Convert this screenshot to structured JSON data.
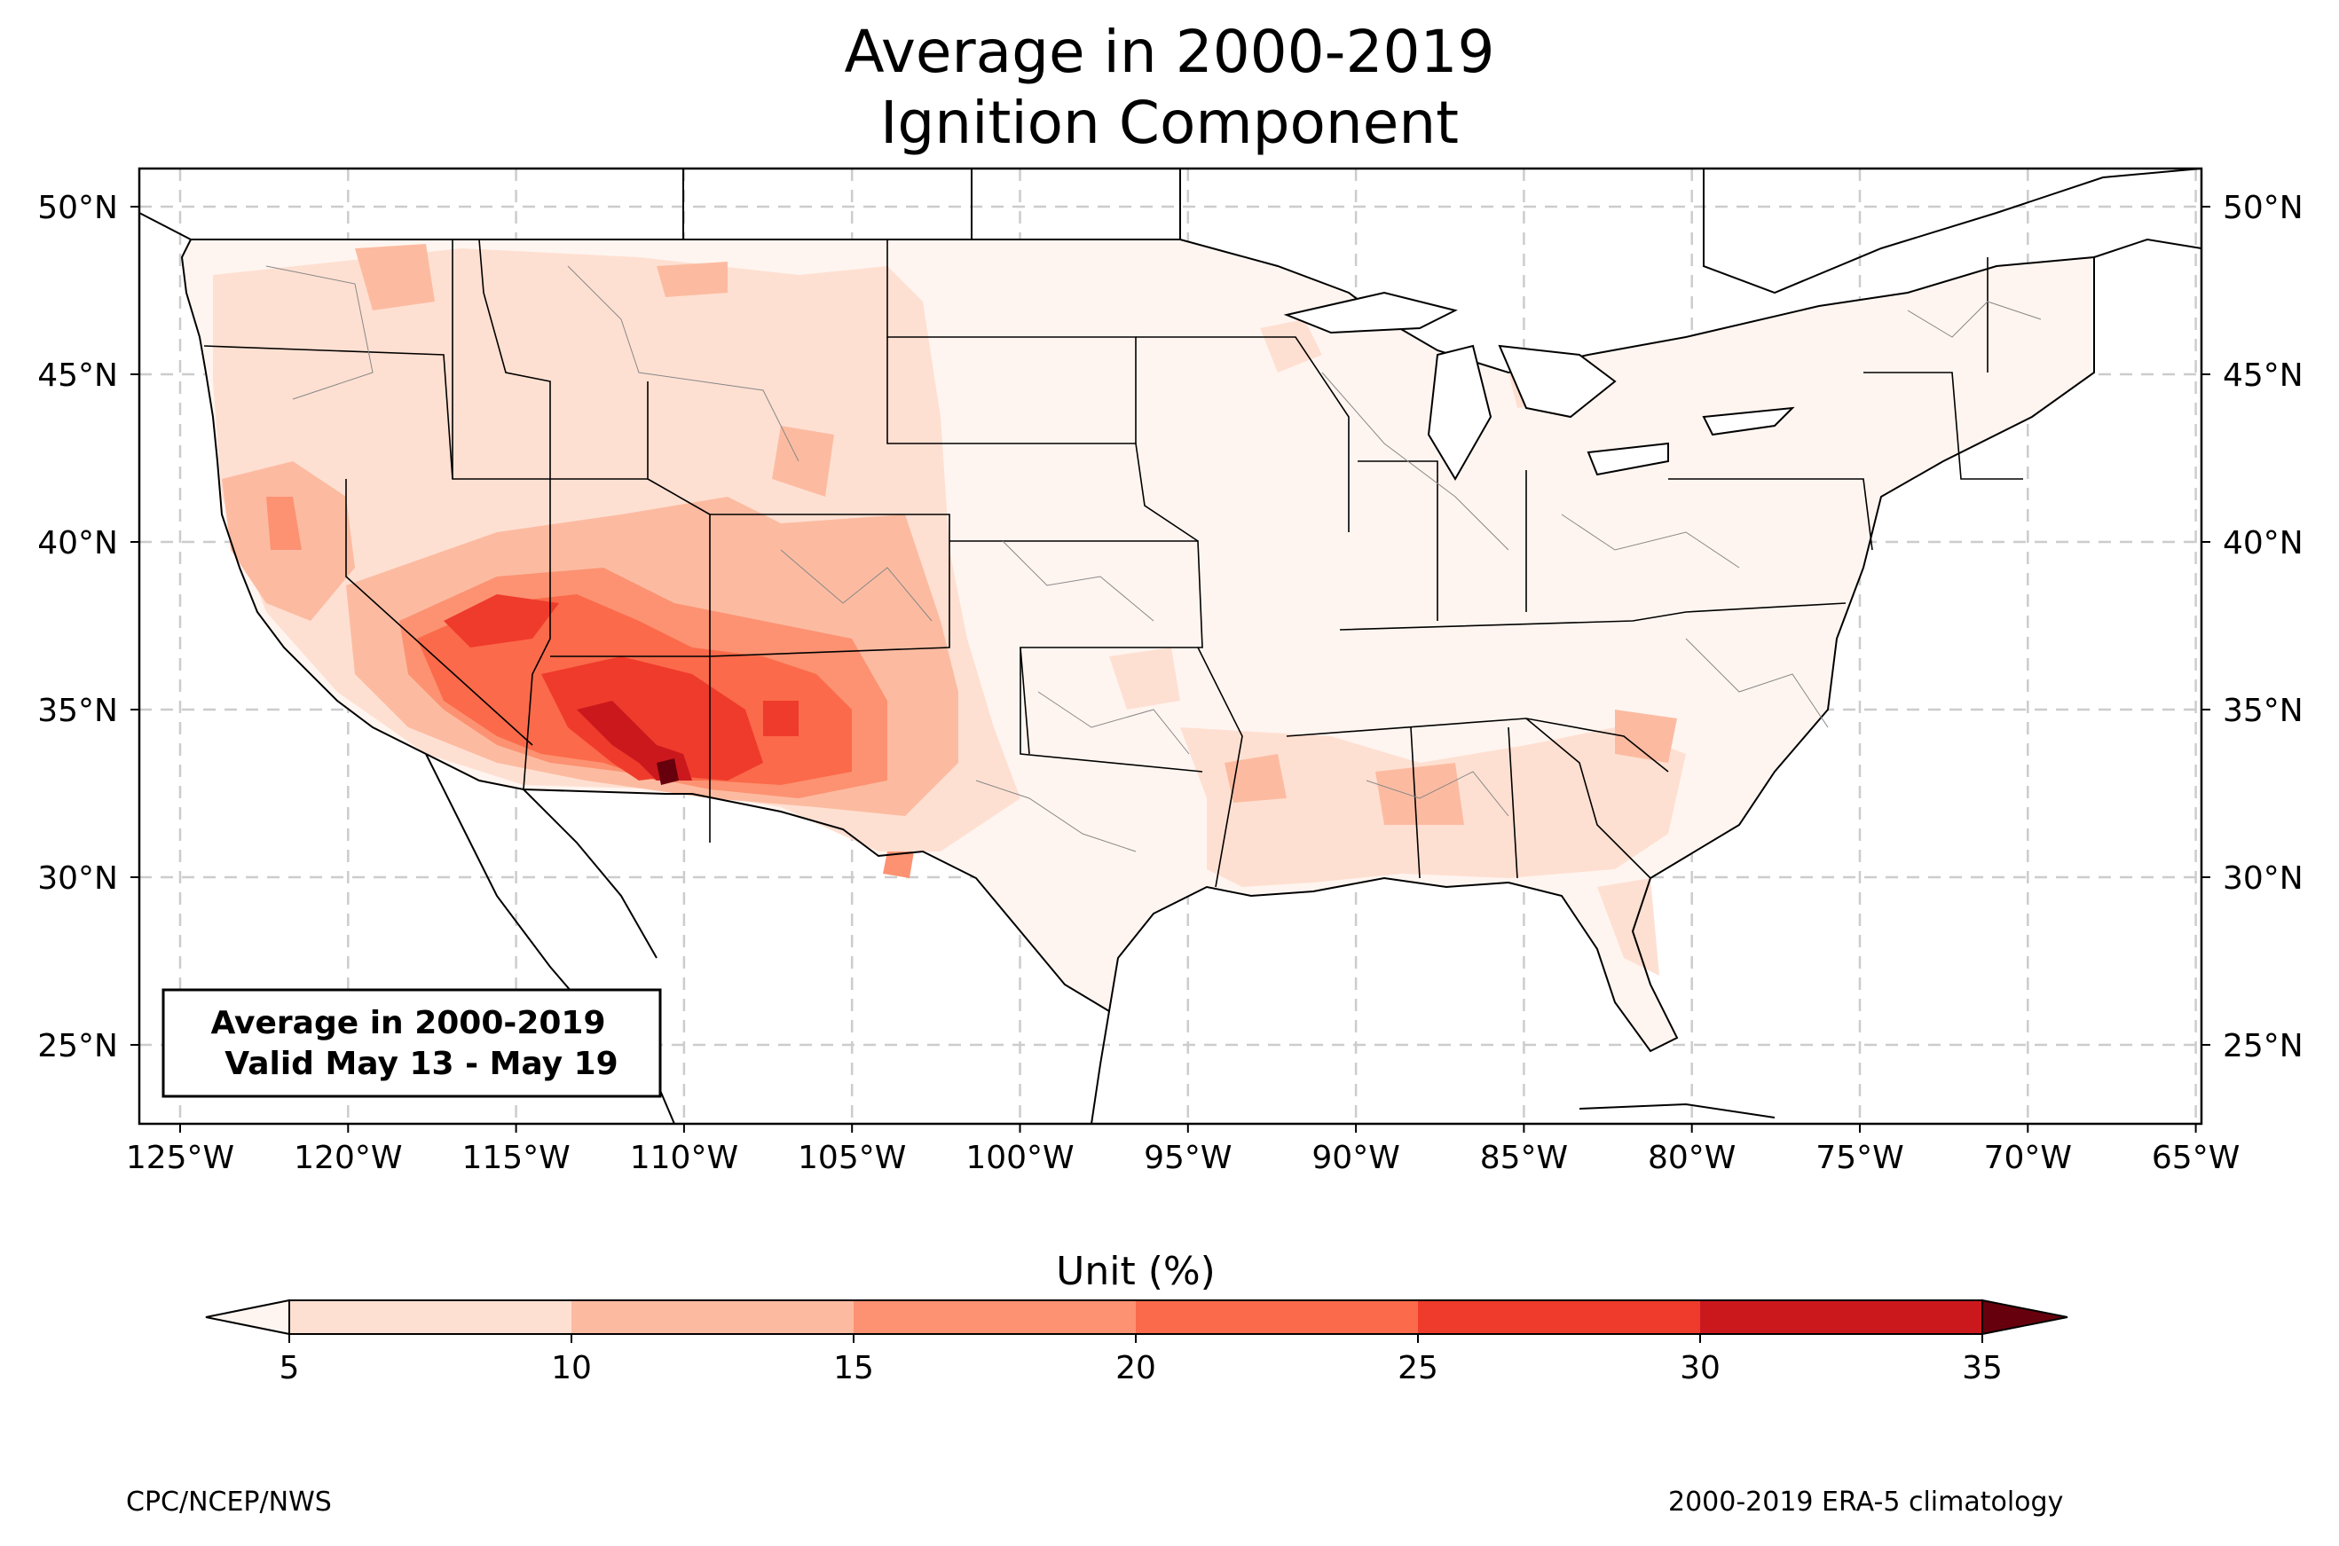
{
  "title_line1": "Average in 2000-2019",
  "title_line2": "Ignition Component",
  "inset_box": {
    "line1": "Average in 2000-2019",
    "line2": "Valid May 13 - May 19"
  },
  "map": {
    "lon_ticks": [
      "125°W",
      "120°W",
      "115°W",
      "110°W",
      "105°W",
      "100°W",
      "95°W",
      "90°W",
      "85°W",
      "80°W",
      "75°W",
      "70°W",
      "65°W"
    ],
    "lat_ticks": [
      "50°N",
      "45°N",
      "40°N",
      "35°N",
      "30°N",
      "25°N"
    ],
    "gridlines": true
  },
  "colorbar": {
    "label": "Unit (%)",
    "ticks": [
      "5",
      "10",
      "15",
      "20",
      "25",
      "30",
      "35"
    ],
    "colors": [
      "#fee0d2",
      "#fcbba1",
      "#fc9272",
      "#fb6a4a",
      "#ef3b2c",
      "#cb181d",
      "#a50f15"
    ],
    "under_color": "#fff5f0",
    "over_color": "#67000d"
  },
  "footer": {
    "left": "CPC/NCEP/NWS",
    "right": "2000-2019 ERA-5 climatology"
  }
}
